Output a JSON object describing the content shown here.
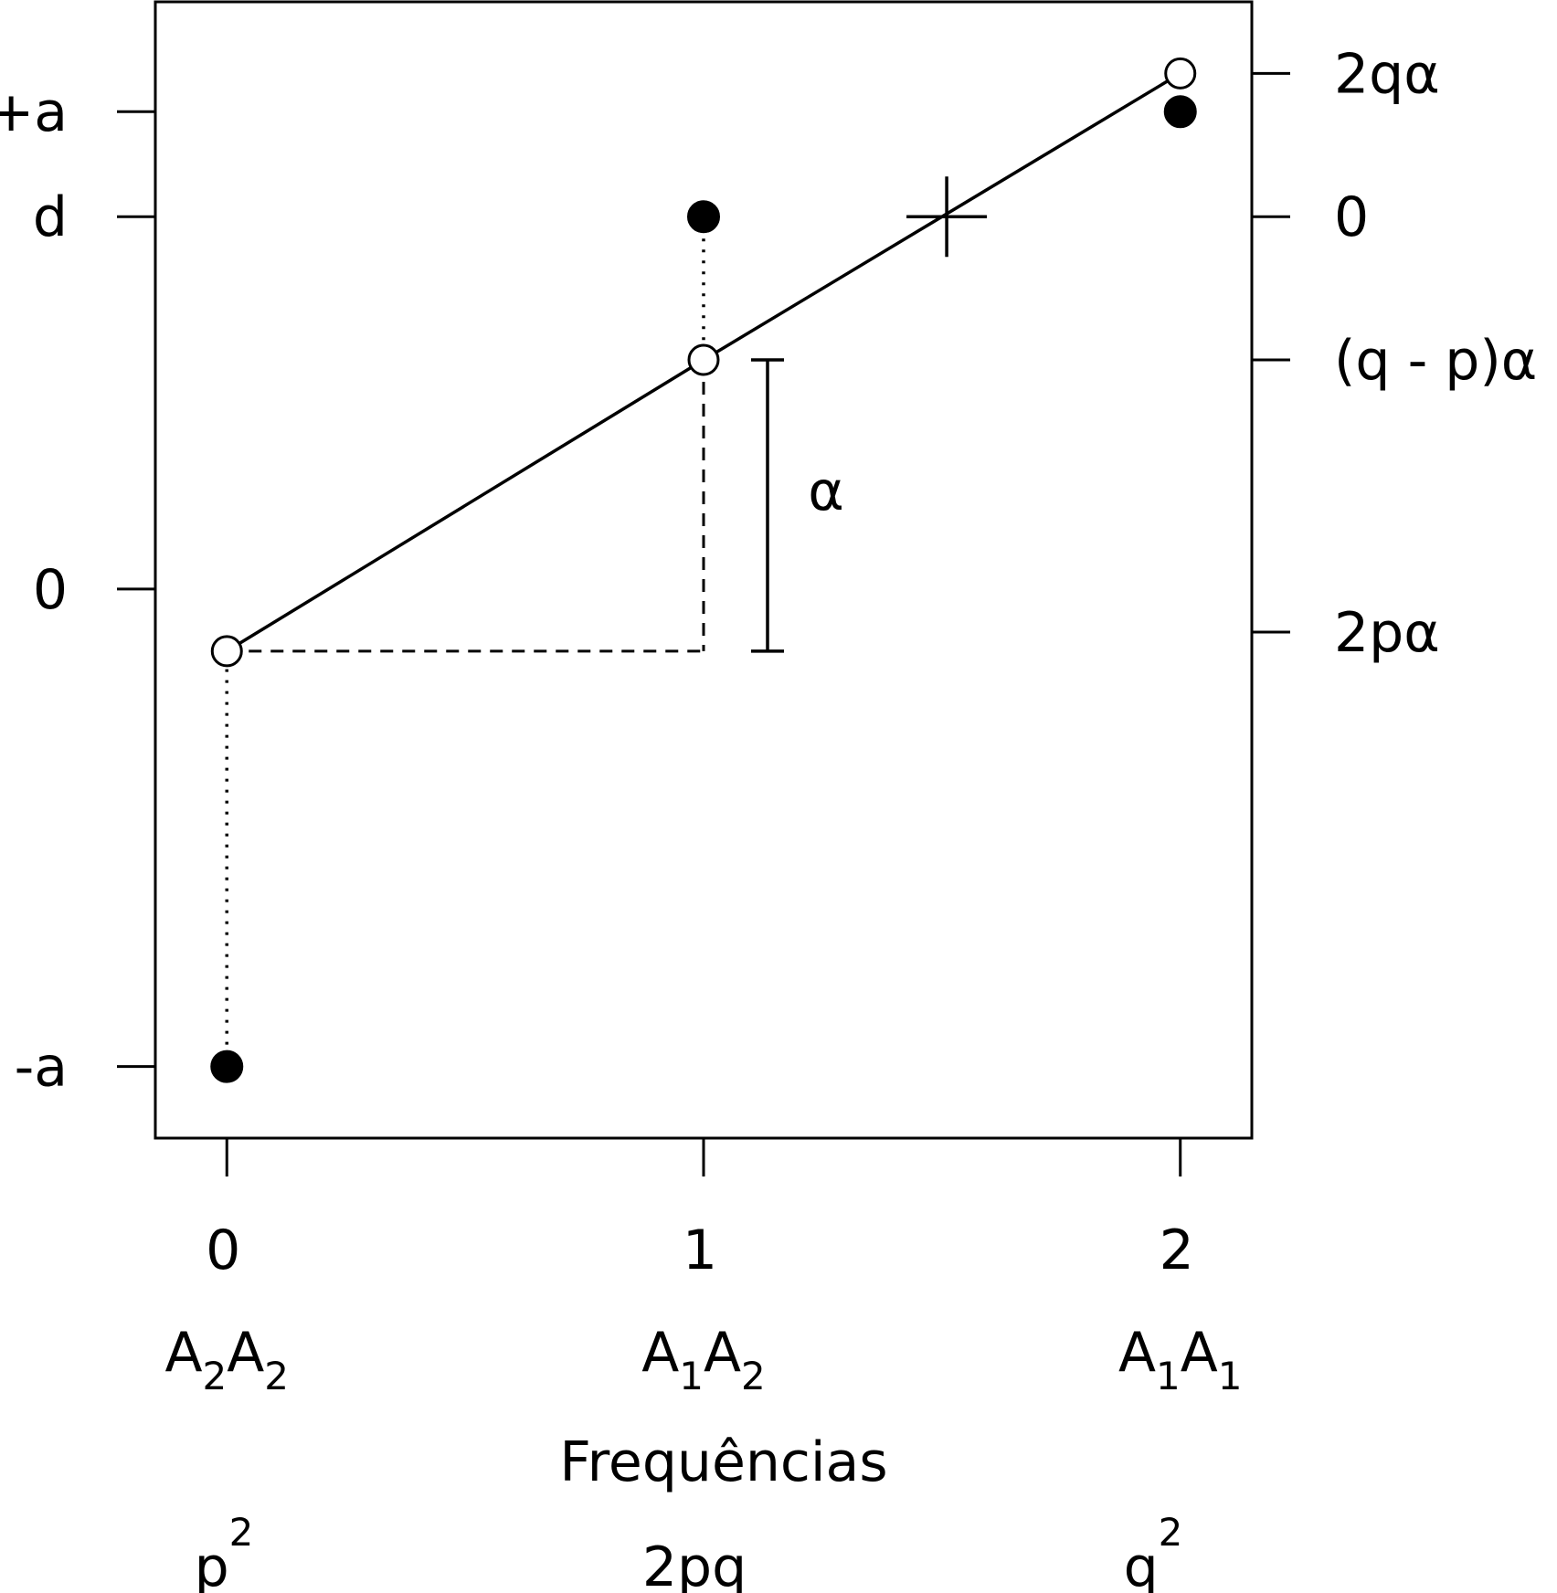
{
  "chart_data": {
    "type": "scatter",
    "x": {
      "tick_values": [
        0,
        1,
        2
      ],
      "tick_labels": [
        "0",
        "1",
        "2"
      ],
      "genotypes": [
        {
          "base1": "A",
          "sub1": "2",
          "base2": "A",
          "sub2": "2"
        },
        {
          "base1": "A",
          "sub1": "1",
          "base2": "A",
          "sub2": "2"
        },
        {
          "base1": "A",
          "sub1": "1",
          "base2": "A",
          "sub2": "1"
        }
      ],
      "title": "Frequências",
      "frequencies": [
        {
          "base": "p",
          "sup": "2"
        },
        {
          "base": "2pq",
          "sup": ""
        },
        {
          "base": "q",
          "sup": "2"
        }
      ],
      "range": [
        -0.15,
        2.15
      ]
    },
    "y": {
      "range": [
        -1.15,
        1.23
      ],
      "left_ticks": [
        {
          "value": 1.0,
          "label": "+a"
        },
        {
          "value": 0.78,
          "label": "d"
        },
        {
          "value": 0.0,
          "label": "0"
        },
        {
          "value": -1.0,
          "label": "-a"
        }
      ],
      "right_ticks": [
        {
          "value": 1.08,
          "label": "2qα"
        },
        {
          "value": 0.78,
          "label": "0"
        },
        {
          "value": 0.48,
          "label": "(q - p)α"
        },
        {
          "value": -0.09,
          "label": "2pα"
        }
      ]
    },
    "series": [
      {
        "kind": "genotypic-values",
        "marker": "filled",
        "points": [
          [
            0,
            -1.0
          ],
          [
            1,
            0.78
          ],
          [
            2,
            1.0
          ]
        ]
      },
      {
        "kind": "breeding-values",
        "marker": "open",
        "points": [
          [
            0,
            -0.13
          ],
          [
            1,
            0.48
          ],
          [
            2,
            1.08
          ]
        ]
      }
    ],
    "mean_marker": {
      "x": 1.51,
      "y": 0.78
    },
    "alpha_label": "α",
    "grid": false,
    "legend": "none"
  }
}
